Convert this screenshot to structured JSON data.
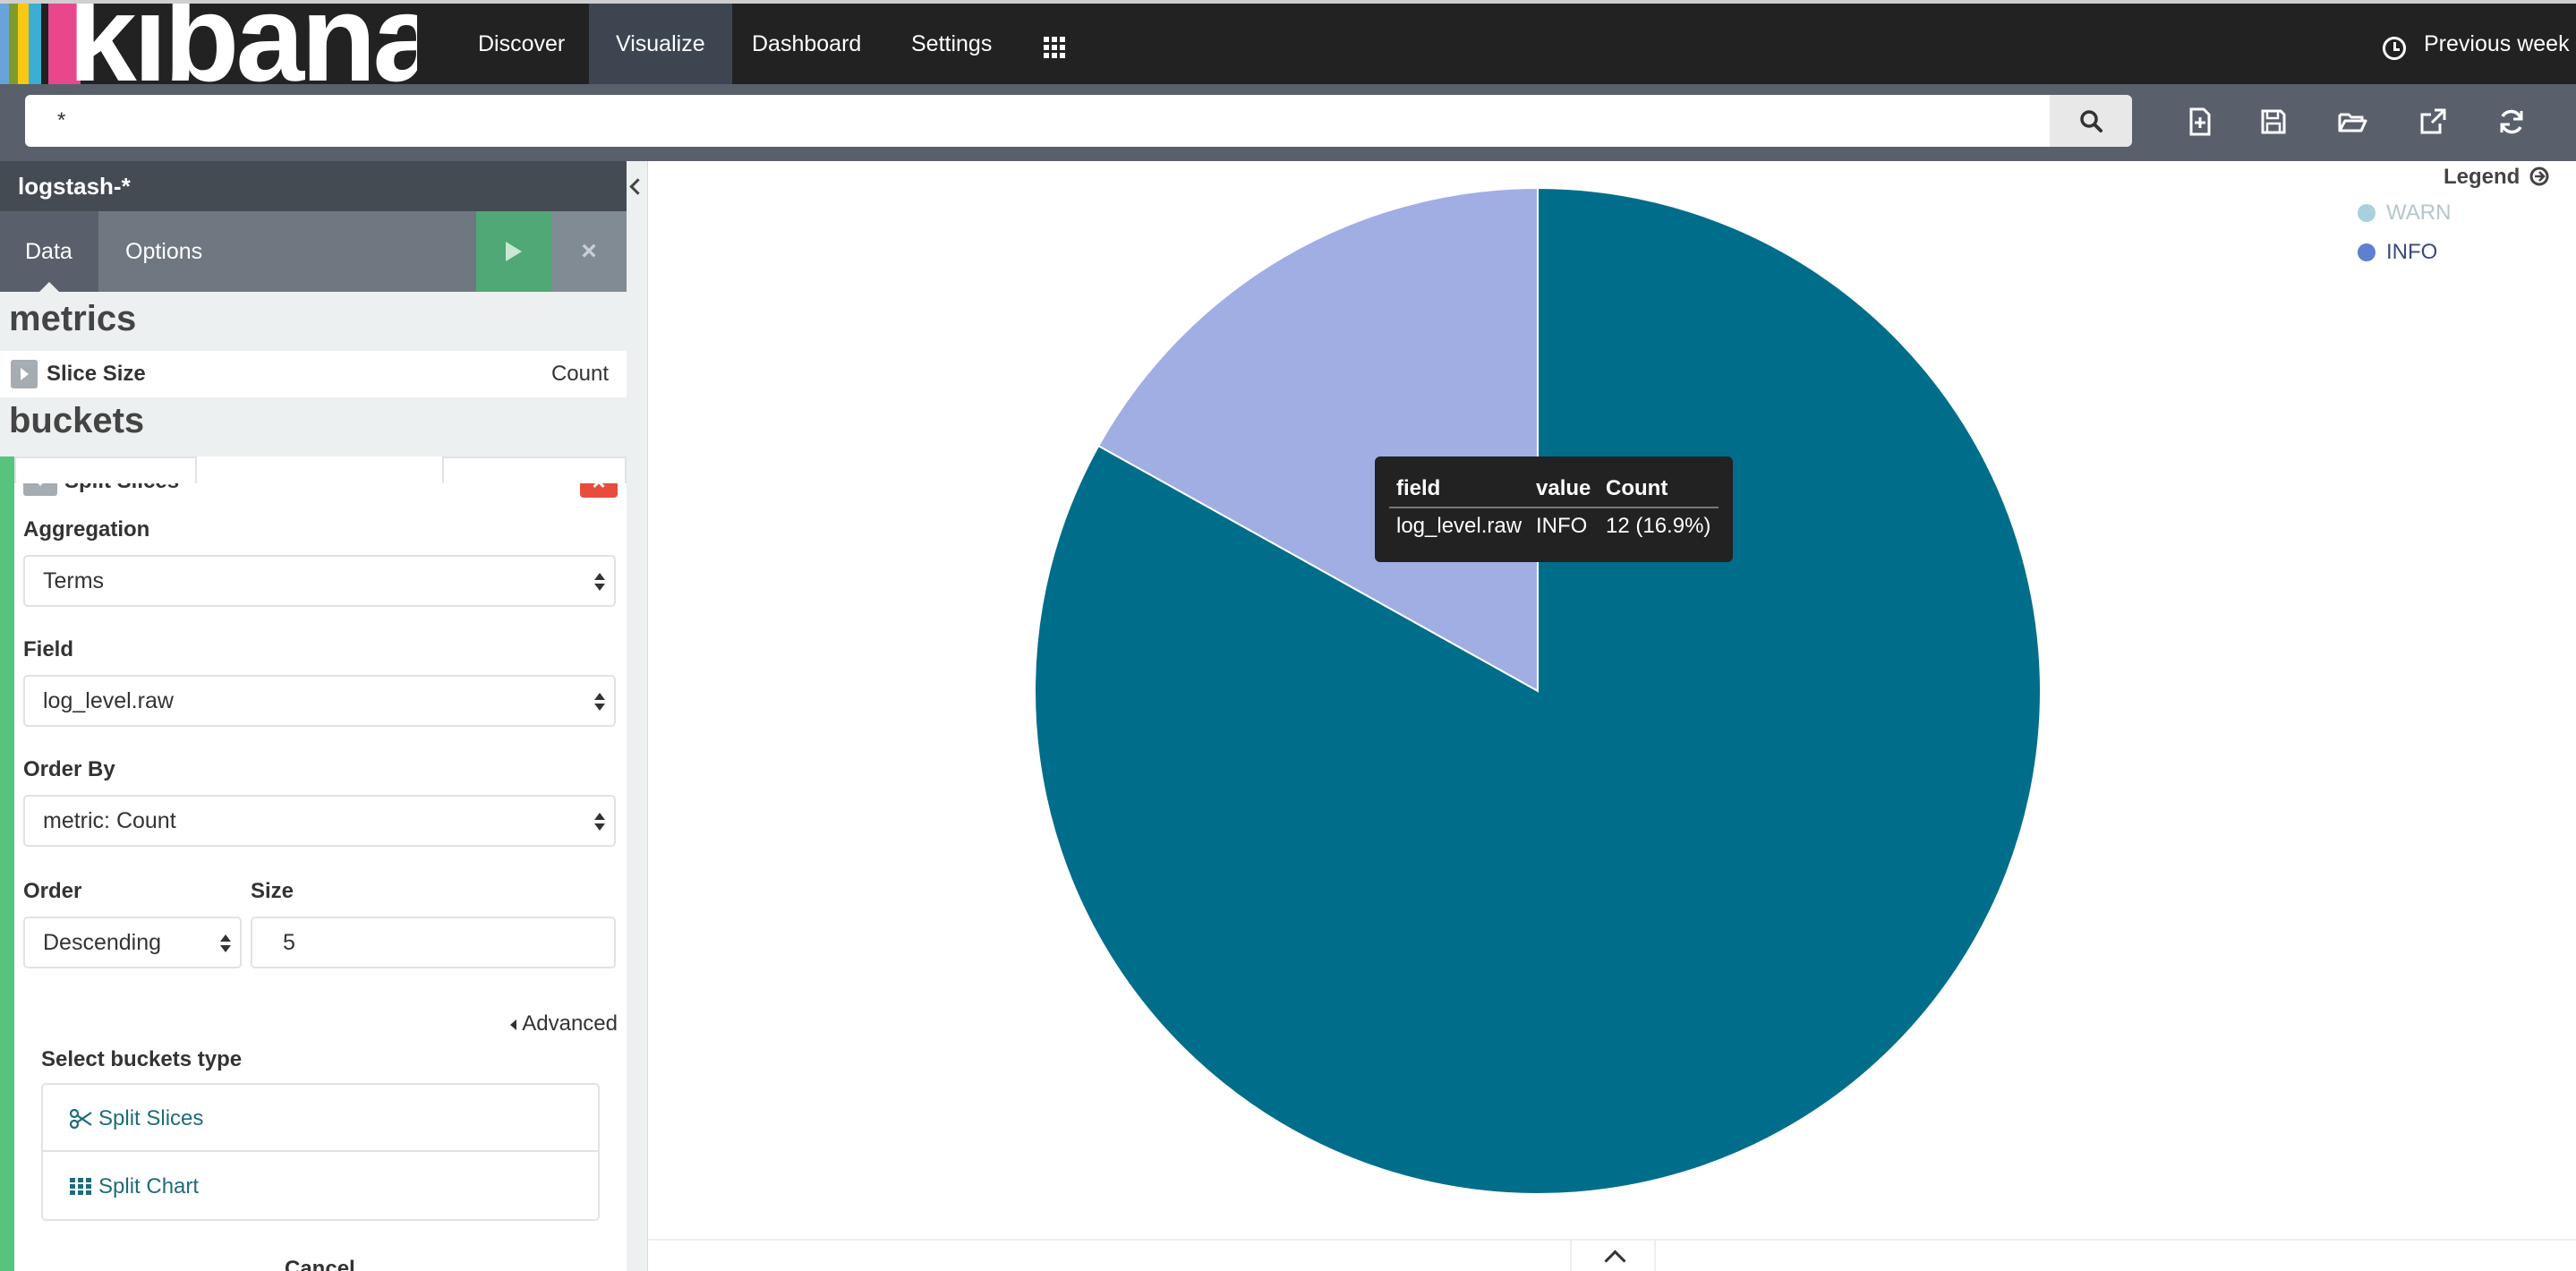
{
  "nav": {
    "logo_text": "kibana",
    "items": [
      {
        "label": "Discover"
      },
      {
        "label": "Visualize"
      },
      {
        "label": "Dashboard"
      },
      {
        "label": "Settings"
      }
    ],
    "active": "Visualize",
    "time_label": "Previous week",
    "logo_bar_colors": [
      "#e8488b",
      "#3caed2",
      "#f9c814",
      "#7d9c2b",
      "#6aa3d9"
    ]
  },
  "search": {
    "query": "*"
  },
  "sidebar": {
    "index_pattern": "logstash-*",
    "tabs": [
      {
        "label": "Data"
      },
      {
        "label": "Options"
      }
    ],
    "discard_symbol": "×",
    "metrics_heading": "metrics",
    "metric": {
      "label": "Slice Size",
      "value": "Count"
    },
    "buckets_heading": "buckets",
    "bucket": {
      "label": "Split Slices",
      "remove_symbol": "×",
      "aggregation_label": "Aggregation",
      "aggregation_value": "Terms",
      "field_label": "Field",
      "field_value": "log_level.raw",
      "order_by_label": "Order By",
      "order_by_value": "metric: Count",
      "order_label": "Order",
      "order_value": "Descending",
      "size_label": "Size",
      "size_value": "5",
      "advanced_label": "Advanced"
    },
    "select_type_label": "Select buckets type",
    "type_options": [
      {
        "label": "Split Slices",
        "icon": "scissors-icon"
      },
      {
        "label": "Split Chart",
        "icon": "grid-icon"
      }
    ],
    "cancel_label": "Cancel"
  },
  "chart_data": {
    "type": "pie",
    "slices": [
      {
        "label": "WARN",
        "value": 83.1,
        "color": "#006e8a"
      },
      {
        "label": "INFO",
        "value": 16.9,
        "color": "#a0aee4"
      }
    ]
  },
  "tooltip": {
    "headers": [
      "field",
      "value",
      "Count"
    ],
    "row": [
      "log_level.raw",
      "INFO",
      "12 (16.9%)"
    ]
  },
  "legend": {
    "title": "Legend",
    "items": [
      {
        "label": "WARN",
        "color": "#a9d0dc",
        "text_color": "#b4c6cc"
      },
      {
        "label": "INFO",
        "color": "#5f7fd0",
        "text_color": "#3a4a7a"
      }
    ]
  }
}
